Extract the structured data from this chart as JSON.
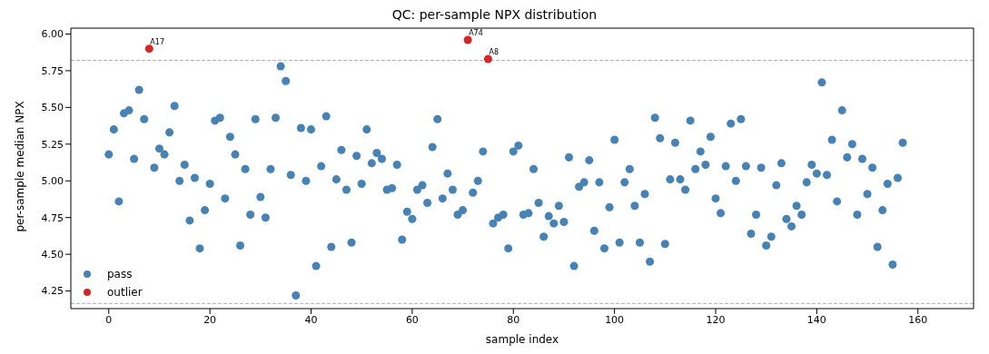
{
  "chart_data": {
    "type": "scatter",
    "title": "QC: per-sample NPX distribution",
    "xlabel": "sample index",
    "ylabel": "per-sample median NPX",
    "xlim": [
      -7.5,
      171
    ],
    "xticks": [
      0,
      20,
      40,
      60,
      80,
      100,
      120,
      140,
      160
    ],
    "ylim": [
      4.13,
      6.04
    ],
    "yticks": [
      {
        "value": 4.25,
        "label": "4.25"
      },
      {
        "value": 4.5,
        "label": "4.50"
      },
      {
        "value": 4.75,
        "label": "4.75"
      },
      {
        "value": 5,
        "label": "5.00"
      },
      {
        "value": 5.25,
        "label": "5.25"
      },
      {
        "value": 5.5,
        "label": "5.50"
      },
      {
        "value": 5.75,
        "label": "5.75"
      },
      {
        "value": 6,
        "label": "6.00"
      }
    ],
    "grid": false,
    "legend": "bottom left",
    "marker": "circle",
    "series": [
      {
        "name": "pass",
        "color": "#4682b4",
        "x": [
          0,
          1,
          2,
          3,
          4,
          5,
          6,
          7,
          9,
          10,
          11,
          12,
          13,
          14,
          15,
          16,
          17,
          18,
          19,
          20,
          21,
          22,
          23,
          24,
          25,
          26,
          27,
          28,
          29,
          30,
          31,
          32,
          33,
          34,
          35,
          36,
          37,
          38,
          39,
          40,
          41,
          42,
          43,
          44,
          45,
          46,
          47,
          48,
          49,
          50,
          51,
          52,
          53,
          54,
          55,
          56,
          57,
          58,
          59,
          60,
          61,
          62,
          63,
          64,
          65,
          66,
          67,
          68,
          69,
          70,
          72,
          73,
          74,
          76,
          77,
          78,
          79,
          80,
          81,
          82,
          83,
          84,
          85,
          86,
          87,
          88,
          89,
          90,
          91,
          92,
          93,
          94,
          95,
          96,
          97,
          98,
          99,
          100,
          101,
          102,
          103,
          104,
          105,
          106,
          107,
          108,
          109,
          110,
          111,
          112,
          113,
          114,
          115,
          116,
          117,
          118,
          119,
          120,
          121,
          122,
          123,
          124,
          125,
          126,
          127,
          128,
          129,
          130,
          131,
          132,
          133,
          134,
          135,
          136,
          137,
          138,
          139,
          140,
          141,
          142,
          143,
          144,
          145,
          146,
          147,
          148,
          149,
          150,
          151,
          152,
          153,
          154,
          155,
          156,
          157
        ],
        "values": [
          5.18,
          5.35,
          4.86,
          5.46,
          5.48,
          5.15,
          5.62,
          5.42,
          5.09,
          5.22,
          5.18,
          5.33,
          5.51,
          5.0,
          5.11,
          4.73,
          5.02,
          4.54,
          4.8,
          4.98,
          5.41,
          5.43,
          4.88,
          5.3,
          5.18,
          4.56,
          5.08,
          4.77,
          5.42,
          4.89,
          4.75,
          5.08,
          5.43,
          5.78,
          5.68,
          5.04,
          4.22,
          5.36,
          5.0,
          5.35,
          4.42,
          5.1,
          5.44,
          4.55,
          5.01,
          5.21,
          4.94,
          4.58,
          5.17,
          4.98,
          5.35,
          5.12,
          5.19,
          5.15,
          4.94,
          4.95,
          5.11,
          4.6,
          4.79,
          4.74,
          4.94,
          4.97,
          4.85,
          5.23,
          5.42,
          4.88,
          5.05,
          4.94,
          4.77,
          4.8,
          4.92,
          5.0,
          5.2,
          4.71,
          4.75,
          4.77,
          4.54,
          5.2,
          5.24,
          4.77,
          4.78,
          5.08,
          4.85,
          4.62,
          4.76,
          4.71,
          4.83,
          4.72,
          5.16,
          4.42,
          4.96,
          4.99,
          5.14,
          4.66,
          4.99,
          4.54,
          4.82,
          5.28,
          4.58,
          4.99,
          5.08,
          4.83,
          4.58,
          4.91,
          4.45,
          5.43,
          5.29,
          4.57,
          5.01,
          5.26,
          5.01,
          4.94,
          5.41,
          5.08,
          5.2,
          5.11,
          5.3,
          4.88,
          4.78,
          5.1,
          5.39,
          5.0,
          5.42,
          5.1,
          4.64,
          4.77,
          5.09,
          4.56,
          4.62,
          4.97,
          5.12,
          4.74,
          4.69,
          4.83,
          4.77,
          4.99,
          5.11,
          5.05,
          5.67,
          5.04,
          5.28,
          4.86,
          5.48,
          5.16,
          5.25,
          4.77,
          5.15,
          4.91,
          5.09,
          4.55,
          4.8,
          4.98,
          4.43,
          5.02,
          5.26
        ]
      },
      {
        "name": "outlier",
        "color": "#d62728",
        "x": [
          8,
          71,
          75
        ],
        "values": [
          5.9,
          5.96,
          5.83
        ]
      }
    ],
    "ref_lines": [
      {
        "axis": "y",
        "value": 5.82,
        "color": "#999999",
        "line_style": "dashed"
      },
      {
        "axis": "y",
        "value": 4.165,
        "color": "#999999",
        "line_style": "dashed"
      }
    ],
    "annotations": [
      {
        "text": "A17",
        "x": 8,
        "y": 5.9
      },
      {
        "text": "A74",
        "x": 71,
        "y": 5.96
      },
      {
        "text": "A8",
        "x": 75,
        "y": 5.83
      }
    ]
  }
}
